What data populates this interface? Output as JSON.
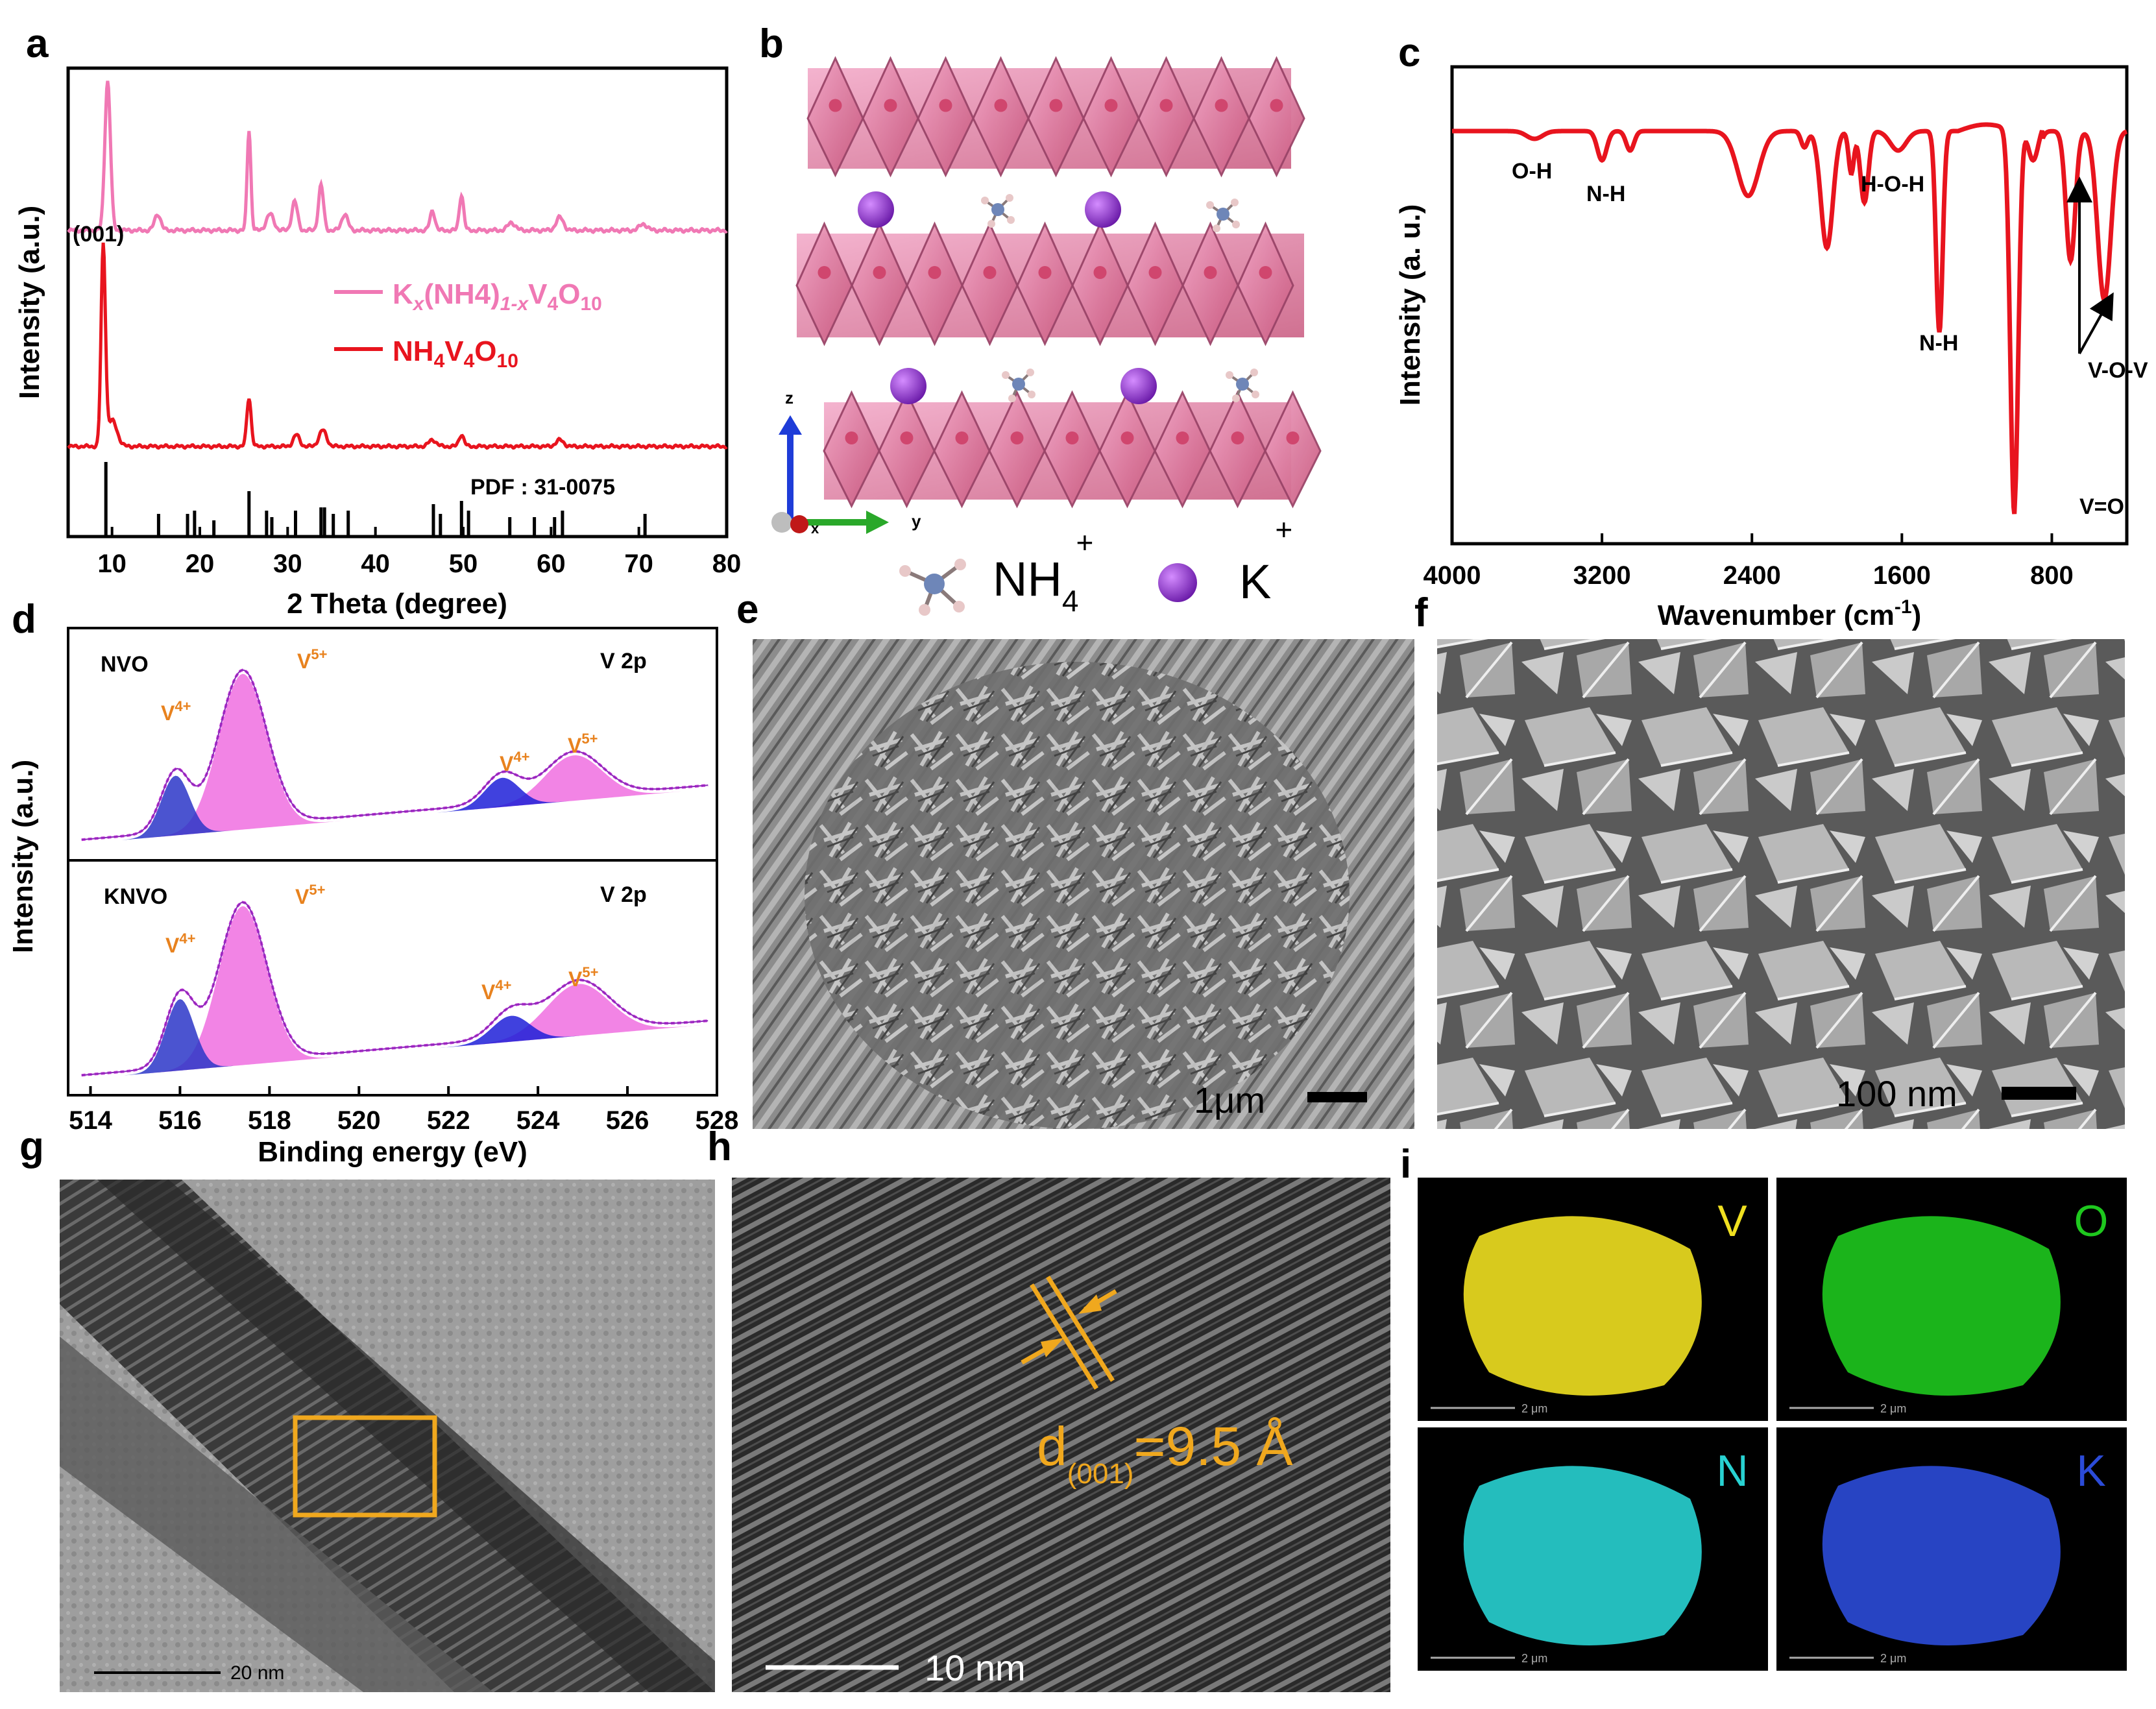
{
  "panel_letters": [
    "a",
    "b",
    "c",
    "d",
    "e",
    "f",
    "g",
    "h",
    "i"
  ],
  "panel_a": {
    "xlabel": "2 Theta (degree)",
    "ylabel": "Intensity (a.u.)",
    "ticks": [
      "10",
      "20",
      "30",
      "40",
      "50",
      "60",
      "70",
      "80"
    ],
    "peak_label": "(001)",
    "pdf_label": "PDF : 31-0075",
    "legend_knvo": {
      "main": "K",
      "sub1": "x",
      "mid": "(NH4)",
      "sub2": "1-x",
      "v": "V",
      "s4": "4",
      "o": "O",
      "s10": "10"
    },
    "legend_nvo": {
      "main": "NH",
      "s4": "4",
      "v": "V",
      "s4b": "4",
      "o": "O",
      "s10": "10"
    },
    "colors": {
      "knvo": "#f078b4",
      "nvo": "#e8141e"
    }
  },
  "panel_b": {
    "nh4_label": "NH",
    "nh4_sub": "4",
    "nh4_sup": "+",
    "k_label": "K",
    "k_sup": "+",
    "axes": {
      "z": "z",
      "y": "y",
      "x": "x"
    }
  },
  "panel_c": {
    "xlabel_main": "Wavenumber (cm",
    "xlabel_sup": "-1",
    "xlabel_end": ")",
    "ylabel": "Intensity (a. u.)",
    "ticks": [
      "4000",
      "3200",
      "2400",
      "1600",
      "800"
    ],
    "annotations": [
      "O-H",
      "N-H",
      "H-O-H",
      "N-H",
      "V-O-V",
      "V=O"
    ]
  },
  "panel_d": {
    "xlabel": "Binding energy (eV)",
    "ylabel": "Intensity (a.u.)",
    "ticks": [
      "514",
      "516",
      "518",
      "520",
      "522",
      "524",
      "526",
      "528"
    ],
    "top": {
      "sample": "NVO",
      "core": "V 2p"
    },
    "bottom": {
      "sample": "KNVO",
      "core": "V 2p"
    },
    "v4": {
      "base": "V",
      "sup": "4+"
    },
    "v5": {
      "base": "V",
      "sup": "5+"
    }
  },
  "panel_e": {
    "scale": "1μm"
  },
  "panel_f": {
    "scale": "100 nm"
  },
  "panel_g": {
    "scale": "20 nm"
  },
  "panel_h": {
    "scale": "10 nm",
    "d_main": "d",
    "d_sub": "(001)",
    "d_value": "=9.5 Å"
  },
  "panel_i": {
    "maps": [
      {
        "element": "V",
        "color": "#f0e020",
        "scale": "2 μm"
      },
      {
        "element": "O",
        "color": "#1ec81e",
        "scale": "2 μm"
      },
      {
        "element": "N",
        "color": "#28d2d2",
        "scale": "2 μm"
      },
      {
        "element": "K",
        "color": "#2b4bd8",
        "scale": "2 μm"
      }
    ]
  }
}
